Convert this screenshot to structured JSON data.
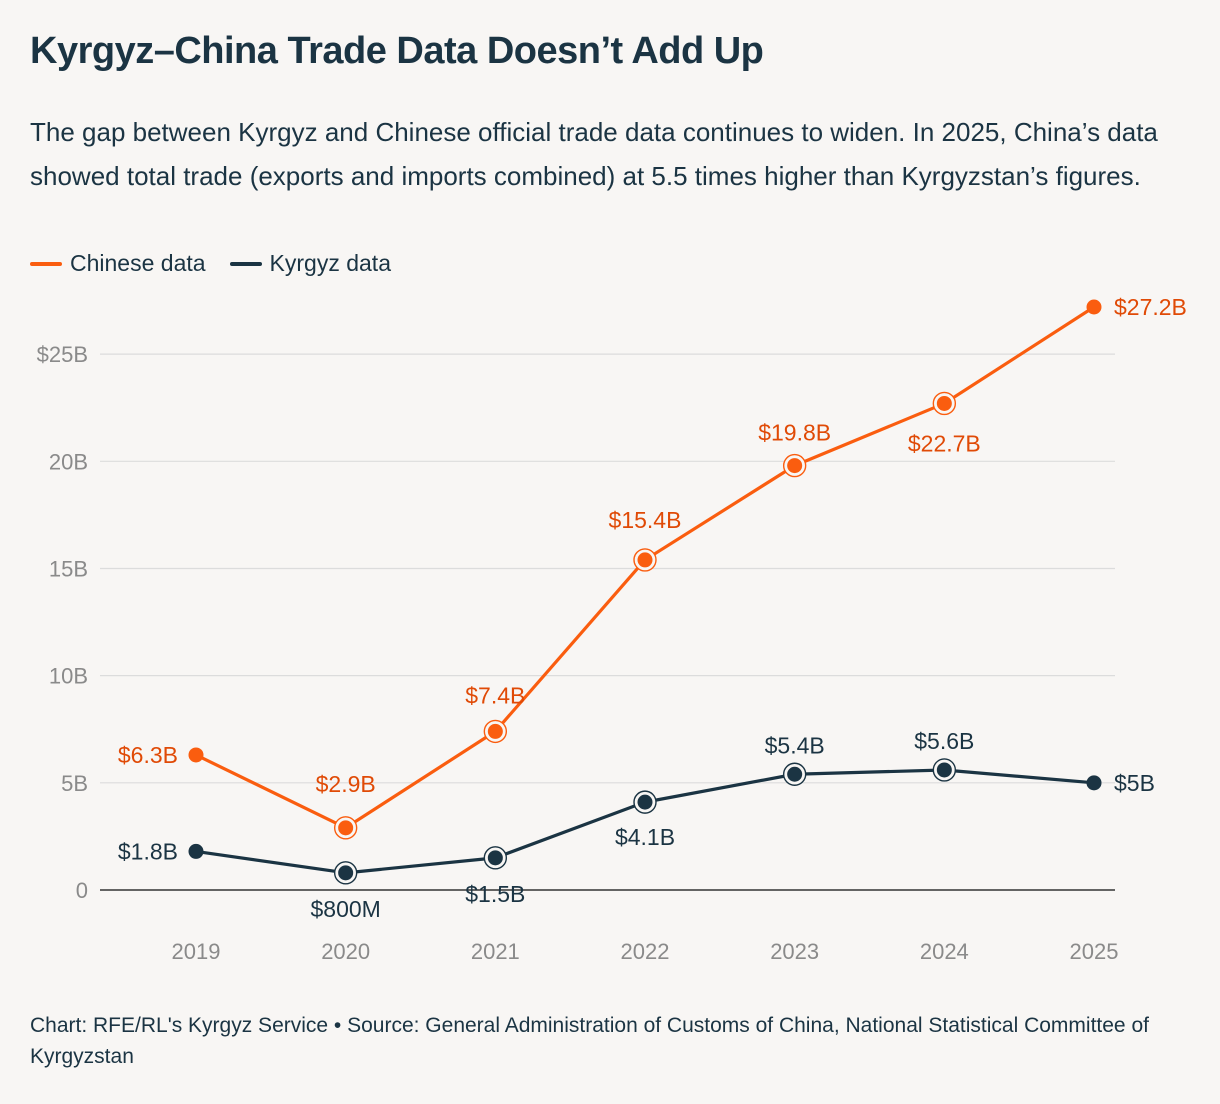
{
  "title": "Kyrgyz–China Trade Data Doesn’t Add Up",
  "subtitle": "The gap between Kyrgyz and Chinese official trade data continues to widen. In 2025, China’s data showed total trade (exports and imports combined) at 5.5 times higher than Kyrgyzstan’s figures.",
  "footer": "Chart: RFE/RL's Kyrgyz Service • Source: General Administration of Customs of China, National Statistical Committee of Kyrgyzstan",
  "colors": {
    "chinese": "#fa5d0f",
    "chinese_label": "#e04a06",
    "kyrgyz": "#1b3443",
    "grid": "#dcdcdc",
    "axis": "#333333",
    "tick": "#8a8a8a"
  },
  "chart_data": {
    "type": "line",
    "x": [
      "2019",
      "2020",
      "2021",
      "2022",
      "2023",
      "2024",
      "2025"
    ],
    "ylim": [
      0,
      27.2
    ],
    "yticks": [
      0,
      5,
      10,
      15,
      20,
      25
    ],
    "ytick_labels": [
      "0",
      "5B",
      "10B",
      "15B",
      "20B",
      "$25B"
    ],
    "legend": "top-left",
    "series": [
      {
        "name": "Chinese data",
        "color_key": "chinese",
        "values": [
          6.3,
          2.9,
          7.4,
          15.4,
          19.8,
          22.7,
          27.2
        ],
        "labels": [
          "$6.3B",
          "$2.9B",
          "$7.4B",
          "$15.4B",
          "$19.8B",
          "$22.7B",
          "$27.2B"
        ]
      },
      {
        "name": "Kyrgyz data",
        "color_key": "kyrgyz",
        "values": [
          1.8,
          0.8,
          1.5,
          4.1,
          5.4,
          5.6,
          5.0
        ],
        "labels": [
          "$1.8B",
          "$800M",
          "$1.5B",
          "$4.1B",
          "$5.4B",
          "$5.6B",
          "$5B"
        ]
      }
    ]
  }
}
